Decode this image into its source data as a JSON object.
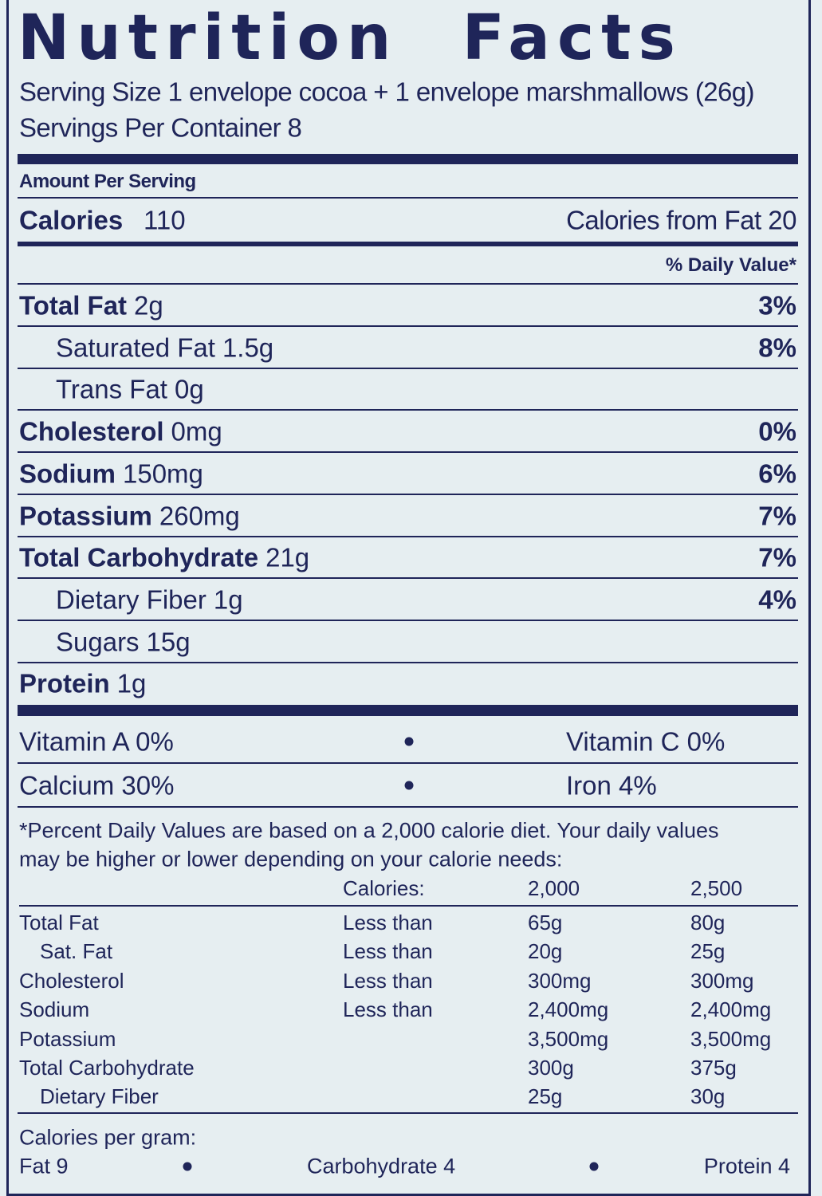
{
  "title": "Nutrition Facts",
  "serving_size": "Serving Size 1 envelope cocoa + 1 envelope marshmallows (26g)",
  "servings_per_container": "Servings Per Container 8",
  "amount_per_serving": "Amount Per Serving",
  "calories": {
    "label": "Calories",
    "amount": "110"
  },
  "calories_from_fat": "Calories from Fat 20",
  "daily_value_header": "% Daily Value*",
  "nutrients": [
    {
      "label": "Total Fat",
      "amount": "2g",
      "dv": "3%",
      "indent": false
    },
    {
      "label": "Saturated Fat",
      "amount": "1.5g",
      "dv": "8%",
      "indent": true
    },
    {
      "label": "Trans Fat",
      "amount": "0g",
      "indent": true
    },
    {
      "label": "Cholesterol",
      "amount": "0mg",
      "dv": "0%",
      "indent": false
    },
    {
      "label": "Sodium",
      "amount": "150mg",
      "dv": "6%",
      "indent": false
    },
    {
      "label": "Potassium",
      "amount": "260mg",
      "dv": "7%",
      "indent": false
    },
    {
      "label": "Total Carbohydrate",
      "amount": "21g",
      "dv": "7%",
      "indent": false
    },
    {
      "label": "Dietary Fiber",
      "amount": "1g",
      "dv": "4%",
      "indent": true
    },
    {
      "label": "Sugars",
      "amount": "15g",
      "indent": true
    },
    {
      "label": "Protein",
      "amount": "1g",
      "indent": false
    }
  ],
  "vitamins": [
    [
      "Vitamin A 0%",
      "Vitamin C 0%"
    ],
    [
      "Calcium 30%",
      "Iron 4%"
    ]
  ],
  "footnote": [
    "*Percent Daily Values are based on a 2,000 calorie diet. Your daily values",
    "may be higher or lower depending on your calorie needs:"
  ],
  "reference_table": {
    "header": [
      "Calories:",
      "2,000",
      "2,500"
    ],
    "rows": [
      {
        "label": "Total Fat",
        "qualifier": "Less than",
        "v2000": "65g",
        "v2500": "80g",
        "indent": false
      },
      {
        "label": "Sat. Fat",
        "qualifier": "Less than",
        "v2000": "20g",
        "v2500": "25g",
        "indent": true
      },
      {
        "label": "Cholesterol",
        "qualifier": "Less than",
        "v2000": "300mg",
        "v2500": "300mg",
        "indent": false
      },
      {
        "label": "Sodium",
        "qualifier": "Less than",
        "v2000": "2,400mg",
        "v2500": "2,400mg",
        "indent": false
      },
      {
        "label": "Potassium",
        "qualifier": null,
        "v2000": "3,500mg",
        "v2500": "3,500mg",
        "indent": false
      },
      {
        "label": "Total Carbohydrate",
        "qualifier": null,
        "v2000": "300g",
        "v2500": "375g",
        "indent": false
      },
      {
        "label": "Dietary Fiber",
        "qualifier": null,
        "v2000": "25g",
        "v2500": "30g",
        "indent": true
      }
    ]
  },
  "calories_per_gram": {
    "label": "Calories per gram:",
    "items": [
      "Fat 9",
      "Carbohydrate 4",
      "Protein 4"
    ]
  }
}
